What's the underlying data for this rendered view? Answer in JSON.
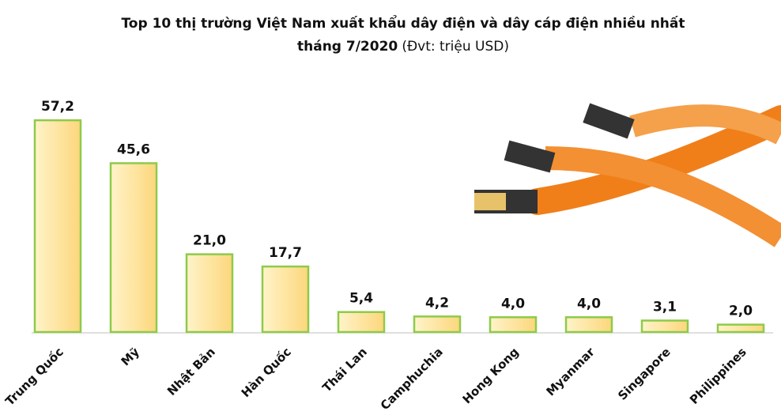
{
  "chart_data": {
    "type": "bar",
    "title": "Top 10 thị trường Việt Nam xuất khẩu dây điện và dây cáp điện nhiều nhất",
    "title_line2": "tháng 7/2020",
    "subtitle": "(Đvt: triệu USD)",
    "categories": [
      "Trung Quốc",
      "Mỹ",
      "Nhật Bản",
      "Hàn Quốc",
      "Thái Lan",
      "Camphuchia",
      "Hong Kong",
      "Myanmar",
      "Singapore",
      "Philippines"
    ],
    "values": [
      57.2,
      45.6,
      21.0,
      17.7,
      5.4,
      4.2,
      4.0,
      4.0,
      3.1,
      2.0
    ],
    "value_labels": [
      "57,2",
      "45,6",
      "21,0",
      "17,7",
      "5,4",
      "4,2",
      "4,0",
      "4,0",
      "3,1",
      "2,0"
    ],
    "color": "#fde9a6",
    "ylim": [
      0,
      60
    ]
  }
}
